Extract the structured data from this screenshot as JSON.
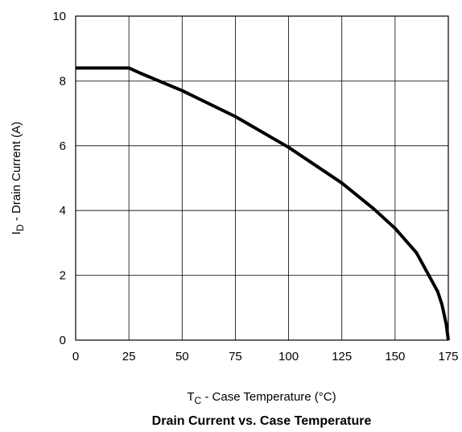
{
  "chart_data": {
    "type": "line",
    "title": "Drain Current vs. Case Temperature",
    "xlabel": {
      "main": "T",
      "sub": "C",
      "rest": " -  Case Temperature (°C)"
    },
    "ylabel": {
      "main": "I",
      "sub": "D",
      "rest": " -  Drain Current (A)"
    },
    "xlim": [
      0,
      175
    ],
    "ylim": [
      0,
      10
    ],
    "xticks": [
      0,
      25,
      50,
      75,
      100,
      125,
      150,
      175
    ],
    "yticks": [
      0,
      2,
      4,
      6,
      8,
      10
    ],
    "grid": true,
    "series": [
      {
        "x": [
          0,
          25,
          30,
          50,
          75,
          100,
          125,
          140,
          150,
          160,
          165,
          170,
          172,
          174,
          175
        ],
        "y": [
          8.4,
          8.4,
          8.25,
          7.7,
          6.9,
          5.95,
          4.85,
          4.05,
          3.45,
          2.7,
          2.1,
          1.5,
          1.1,
          0.5,
          0
        ],
        "color": "#000000"
      }
    ]
  }
}
